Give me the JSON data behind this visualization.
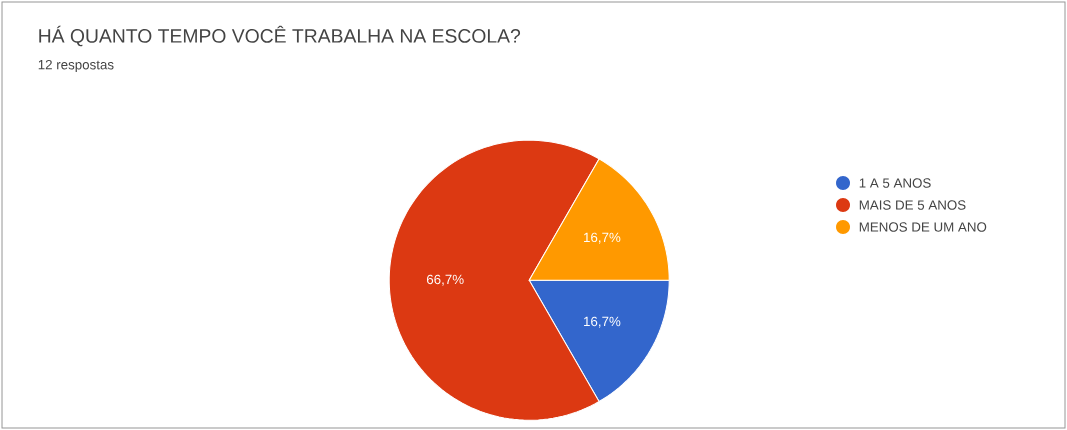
{
  "chart_data": {
    "type": "pie",
    "title": "HÁ QUANTO TEMPO VOCÊ TRABALHA NA ESCOLA?",
    "subtitle": "12 respostas",
    "categories": [
      "1 A 5 ANOS",
      "MAIS DE 5 ANOS",
      "MENOS DE UM ANO"
    ],
    "values": [
      16.7,
      66.7,
      16.7
    ],
    "value_labels": [
      "16,7%",
      "66,7%",
      "16,7%"
    ],
    "colors": [
      "#3366cc",
      "#dc3912",
      "#ff9900"
    ],
    "legend": "right"
  }
}
